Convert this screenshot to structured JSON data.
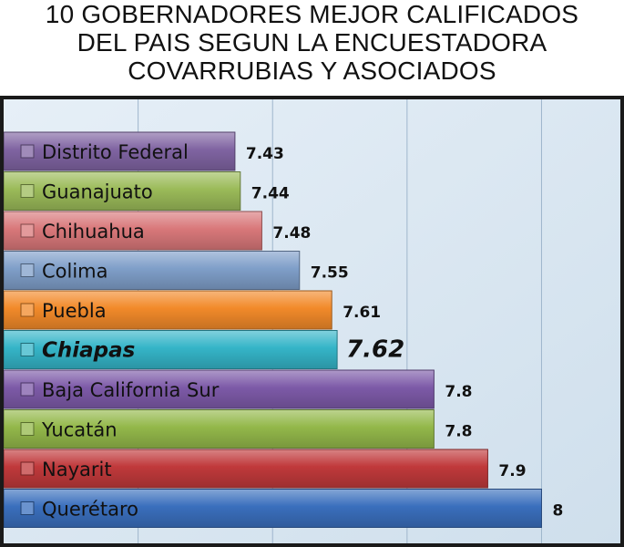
{
  "title_lines": [
    "10 GOBERNADORES MEJOR CALIFICADOS",
    "DEL PAIS SEGUN LA ENCUESTADORA",
    "COVARRUBIAS Y ASOCIADOS"
  ],
  "chart_data": {
    "type": "bar",
    "orientation": "horizontal",
    "categories": [
      "Distrito Federal",
      "Guanajuato",
      "Chihuahua",
      "Colima",
      "Puebla",
      "Chiapas",
      "Baja California Sur",
      "Yucatán",
      "Nayarit",
      "Querétaro"
    ],
    "values": [
      7.43,
      7.44,
      7.48,
      7.55,
      7.61,
      7.62,
      7.8,
      7.8,
      7.9,
      8
    ],
    "value_labels": [
      "7.43",
      "7.44",
      "7.48",
      "7.55",
      "7.61",
      "7.62",
      "7.8",
      "7.8",
      "7.9",
      "8"
    ],
    "colors": [
      "#8064a2",
      "#9bbb59",
      "#d9787a",
      "#7f9fc9",
      "#f28a2a",
      "#35b5c8",
      "#7d5aa8",
      "#93b84a",
      "#c0393b",
      "#3a6fbd"
    ],
    "highlight": "Chiapas",
    "xlim": [
      7,
      8.05
    ],
    "grid": "vertical",
    "legend": "none"
  }
}
